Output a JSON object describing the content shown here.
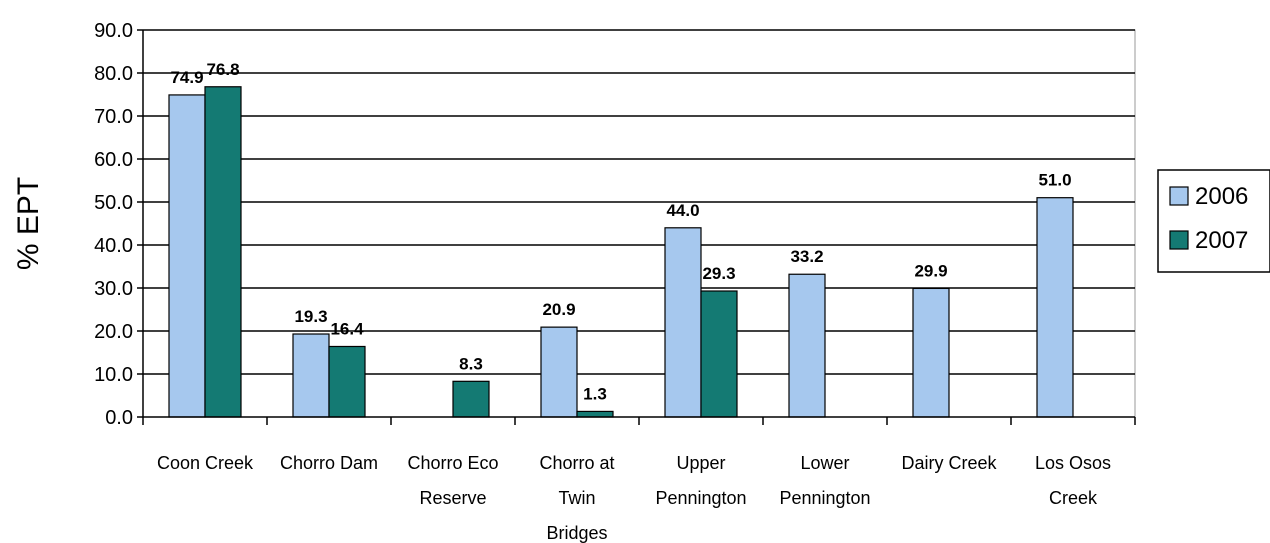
{
  "chart_data": {
    "type": "bar",
    "title": "",
    "xlabel": "",
    "ylabel": "% EPT",
    "ylim": [
      0,
      90
    ],
    "ytick_step": 10,
    "ytick_labels": [
      "0.0",
      "10.0",
      "20.0",
      "30.0",
      "40.0",
      "50.0",
      "60.0",
      "70.0",
      "80.0",
      "90.0"
    ],
    "grid": true,
    "legend_position": "right",
    "categories": [
      [
        "Coon Creek"
      ],
      [
        "Chorro Dam"
      ],
      [
        "Chorro Eco",
        "Reserve"
      ],
      [
        "Chorro at",
        "Twin",
        "Bridges"
      ],
      [
        "Upper",
        "Pennington"
      ],
      [
        "Lower",
        "Pennington"
      ],
      [
        "Dairy Creek"
      ],
      [
        "Los Osos",
        "Creek"
      ]
    ],
    "series": [
      {
        "name": "2006",
        "color": "#a6c8ee",
        "values": [
          74.9,
          19.3,
          null,
          20.9,
          44.0,
          33.2,
          29.9,
          51.0
        ],
        "labels": [
          "74.9",
          "19.3",
          "",
          "20.9",
          "44.0",
          "33.2",
          "29.9",
          "51.0"
        ]
      },
      {
        "name": "2007",
        "color": "#147a73",
        "values": [
          76.8,
          16.4,
          8.3,
          1.3,
          29.3,
          null,
          null,
          null
        ],
        "labels": [
          "76.8",
          "16.4",
          "8.3",
          "1.3",
          "29.3",
          "",
          "",
          ""
        ]
      }
    ]
  }
}
